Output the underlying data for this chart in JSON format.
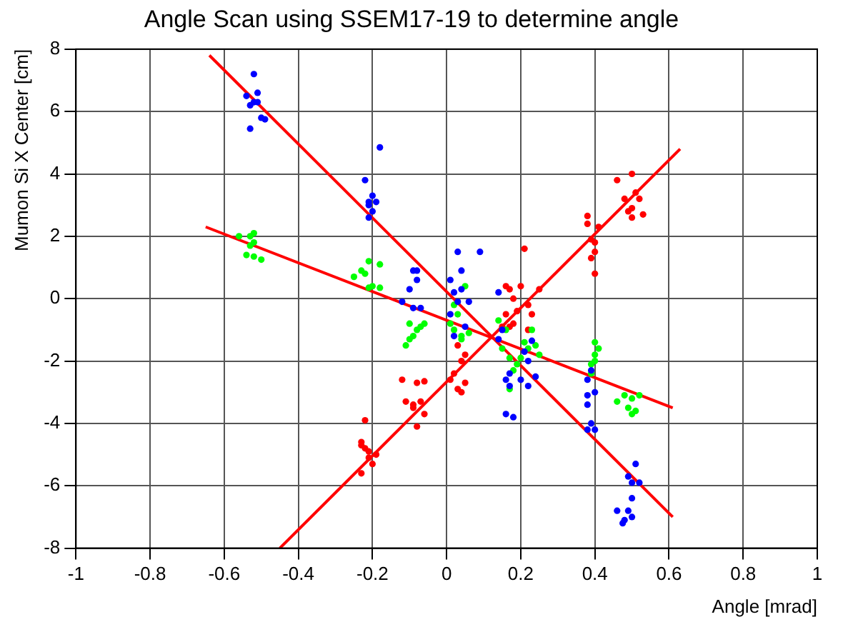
{
  "chart_data": {
    "type": "scatter",
    "title": "Angle Scan using SSEM17-19 to determine angle",
    "xlabel": "Angle [mrad]",
    "ylabel": "Mumon Si X Center [cm]",
    "xlim": [
      -1,
      1
    ],
    "xticks": [
      -1,
      -0.8,
      -0.6,
      -0.4,
      -0.2,
      0,
      0.2,
      0.4,
      0.6,
      0.8,
      1
    ],
    "ylim": [
      -8,
      8
    ],
    "yticks": [
      -8,
      -6,
      -4,
      -2,
      0,
      2,
      4,
      6,
      8
    ],
    "grid": true,
    "legend": false,
    "marker": "circle",
    "series": [
      {
        "color": "#0000ff",
        "x": [
          -0.54,
          -0.53,
          -0.52,
          -0.51,
          -0.51,
          -0.5,
          -0.49,
          -0.53,
          -0.52,
          -0.22,
          -0.18,
          -0.21,
          -0.2,
          -0.21,
          -0.19,
          -0.2,
          -0.21,
          -0.09,
          -0.08,
          -0.1,
          -0.07,
          -0.09,
          -0.12,
          -0.08,
          0.01,
          0.03,
          0.04,
          0.02,
          0.04,
          0.03,
          0.01,
          0.05,
          0.02,
          0.09,
          0.06,
          0.14,
          0.15,
          0.16,
          0.17,
          0.16,
          0.18,
          0.17,
          0.2,
          0.14,
          0.21,
          0.22,
          0.23,
          0.24,
          0.22,
          0.38,
          0.39,
          0.38,
          0.4,
          0.38,
          0.39,
          0.4,
          0.38,
          0.51,
          0.49,
          0.5,
          0.52,
          0.5,
          0.46,
          0.49,
          0.48,
          0.5,
          0.475
        ],
        "values": [
          6.5,
          6.2,
          7.2,
          6.3,
          6.6,
          5.8,
          5.75,
          5.45,
          6.3,
          3.8,
          4.85,
          3.0,
          3.3,
          2.6,
          3.1,
          2.8,
          3.1,
          0.9,
          0.6,
          0.3,
          -0.3,
          -0.3,
          -0.1,
          0.9,
          0.6,
          1.5,
          0.9,
          0.2,
          0.3,
          -0.1,
          -0.5,
          -0.9,
          -1.2,
          1.5,
          -0.1,
          -1.3,
          -1.0,
          -2.6,
          -2.4,
          -3.7,
          -3.8,
          -2.8,
          -2.6,
          0.2,
          -1.7,
          -2.0,
          -1.35,
          -2.5,
          -2.8,
          -2.6,
          -2.3,
          -3.1,
          -3.0,
          -3.4,
          -4.0,
          -4.2,
          -4.2,
          -5.3,
          -5.7,
          -5.9,
          -5.9,
          -6.4,
          -6.8,
          -6.8,
          -7.1,
          -7.0,
          -7.2
        ]
      },
      {
        "color": "#00ff00",
        "x": [
          -0.56,
          -0.53,
          -0.52,
          -0.54,
          -0.52,
          -0.5,
          -0.53,
          -0.52,
          -0.25,
          -0.23,
          -0.21,
          -0.18,
          -0.2,
          -0.21,
          -0.18,
          -0.22,
          -0.1,
          -0.08,
          -0.11,
          -0.07,
          -0.09,
          -0.06,
          -0.1,
          0.01,
          0.02,
          0.04,
          0.05,
          0.03,
          0.06,
          0.04,
          0.02,
          0.14,
          0.16,
          0.17,
          0.18,
          0.17,
          0.19,
          0.15,
          0.21,
          0.22,
          0.24,
          0.23,
          0.25,
          0.2,
          0.4,
          0.41,
          0.39,
          0.4,
          0.39,
          0.4,
          0.46,
          0.48,
          0.5,
          0.49,
          0.5,
          0.51,
          0.52
        ],
        "values": [
          2.0,
          2.0,
          2.1,
          1.4,
          1.35,
          1.25,
          1.7,
          1.8,
          0.7,
          0.9,
          1.2,
          1.1,
          0.4,
          0.35,
          0.35,
          0.8,
          -0.8,
          -1.0,
          -1.5,
          -0.9,
          -1.2,
          -0.8,
          -1.3,
          -0.8,
          -1.0,
          -1.2,
          0.4,
          -0.5,
          -1.1,
          -1.3,
          -0.2,
          -0.7,
          -1.0,
          -1.9,
          -2.3,
          -2.9,
          -2.1,
          -1.6,
          -1.4,
          -1.6,
          -1.5,
          -1.0,
          -1.8,
          -1.9,
          -1.4,
          -1.6,
          -2.1,
          -1.8,
          -2.4,
          -2.0,
          -3.3,
          -3.1,
          -3.2,
          -3.5,
          -3.7,
          -3.6,
          -3.1
        ]
      },
      {
        "color": "#ff0000",
        "x": [
          -0.22,
          -0.23,
          -0.22,
          -0.21,
          -0.23,
          -0.2,
          -0.19,
          -0.21,
          -0.23,
          -0.12,
          -0.08,
          -0.06,
          -0.11,
          -0.09,
          -0.07,
          -0.08,
          -0.06,
          -0.09,
          0.01,
          0.03,
          0.04,
          0.05,
          0.03,
          0.05,
          0.02,
          0.04,
          0.16,
          0.17,
          0.16,
          0.17,
          0.15,
          0.19,
          0.18,
          0.18,
          0.21,
          0.2,
          0.22,
          0.23,
          0.25,
          0.22,
          0.38,
          0.38,
          0.39,
          0.4,
          0.41,
          0.39,
          0.4,
          0.4,
          0.46,
          0.48,
          0.5,
          0.51,
          0.5,
          0.49,
          0.5,
          0.53,
          0.52
        ],
        "values": [
          -3.9,
          -4.6,
          -4.8,
          -5.1,
          -5.6,
          -5.3,
          -5.0,
          -4.9,
          -4.7,
          -2.6,
          -2.7,
          -2.65,
          -3.3,
          -3.4,
          -3.3,
          -4.1,
          -3.7,
          -3.5,
          -2.6,
          -1.5,
          -2.0,
          -1.8,
          -2.9,
          -2.7,
          -2.4,
          -3.0,
          0.4,
          0.3,
          -0.5,
          -0.9,
          -0.9,
          -0.4,
          -0.8,
          0.0,
          1.6,
          0.4,
          -0.2,
          -0.5,
          0.3,
          -1.0,
          2.65,
          2.4,
          1.9,
          1.8,
          2.3,
          1.3,
          1.5,
          0.8,
          3.8,
          3.2,
          4.0,
          3.4,
          2.9,
          2.8,
          2.6,
          2.7,
          3.2
        ]
      },
      {
        "type": "line",
        "marker": "none",
        "color": "#ff0000",
        "x": [
          -0.64,
          0.61
        ],
        "values": [
          7.8,
          -7.0
        ]
      },
      {
        "type": "line",
        "marker": "none",
        "color": "#ff0000",
        "x": [
          -0.65,
          0.61
        ],
        "values": [
          2.3,
          -3.5
        ]
      },
      {
        "type": "line",
        "marker": "none",
        "color": "#ff0000",
        "x": [
          -0.45,
          0.63
        ],
        "values": [
          -8.0,
          4.8
        ]
      }
    ]
  }
}
